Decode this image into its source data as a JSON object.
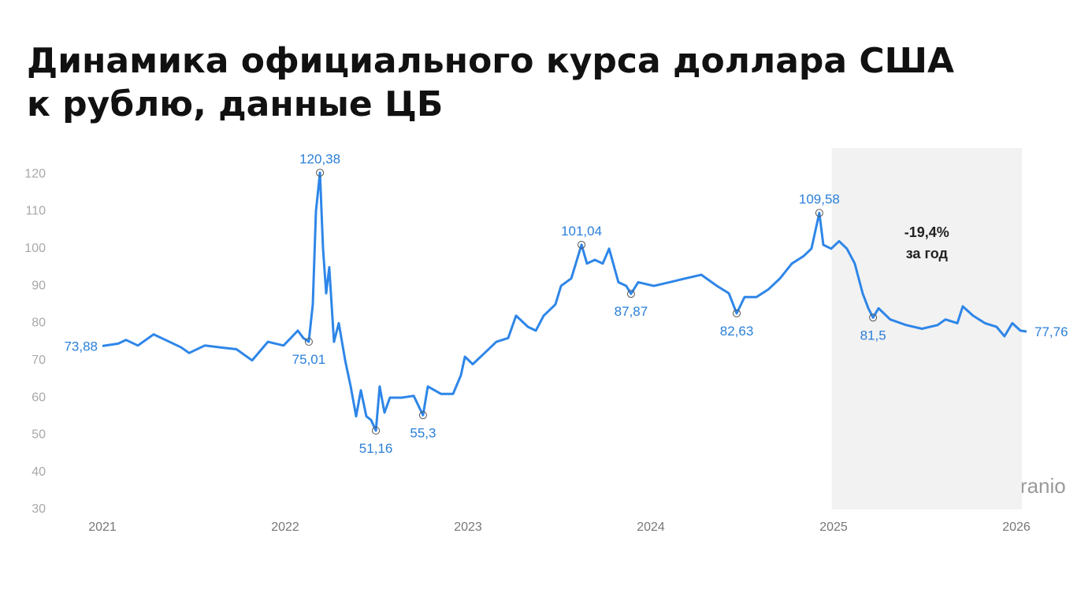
{
  "chart_data": {
    "type": "line",
    "title_lines": [
      "Динамика официального курса доллара США",
      "к рублю, данные ЦБ"
    ],
    "x": [
      2021.0,
      2021.086,
      2021.129,
      2021.194,
      2021.28,
      2021.345,
      2021.431,
      2021.474,
      2021.56,
      2021.647,
      2021.733,
      2021.819,
      2021.905,
      2021.991,
      2022.069,
      2022.099,
      2022.129,
      2022.151,
      2022.168,
      2022.19,
      2022.207,
      2022.224,
      2022.241,
      2022.267,
      2022.293,
      2022.328,
      2022.358,
      2022.388,
      2022.414,
      2022.444,
      2022.47,
      2022.496,
      2022.517,
      2022.543,
      2022.573,
      2022.638,
      2022.703,
      2022.754,
      2022.78,
      2022.853,
      2022.918,
      2022.961,
      2022.983,
      2023.026,
      2023.091,
      2023.155,
      2023.22,
      2023.263,
      2023.328,
      2023.371,
      2023.414,
      2023.478,
      2023.509,
      2023.565,
      2023.621,
      2023.651,
      2023.694,
      2023.737,
      2023.772,
      2023.823,
      2023.866,
      2023.892,
      2023.931,
      2024.017,
      2024.103,
      2024.19,
      2024.276,
      2024.362,
      2024.427,
      2024.47,
      2024.513,
      2024.578,
      2024.642,
      2024.707,
      2024.772,
      2024.836,
      2024.879,
      2024.922,
      2024.944,
      2024.987,
      2025.03,
      2025.073,
      2025.116,
      2025.159,
      2025.19,
      2025.216,
      2025.246,
      2025.31,
      2025.397,
      2025.483,
      2025.569,
      2025.612,
      2025.677,
      2025.707,
      2025.763,
      2025.828,
      2025.892,
      2025.935,
      2025.978,
      2026.022,
      2026.056
    ],
    "series": [
      {
        "color": "#2e86e8",
        "values": [
          73.88,
          74.5,
          75.5,
          74,
          77,
          75.5,
          73.5,
          72,
          74,
          73.5,
          73,
          70,
          75,
          74,
          78,
          76,
          75.01,
          85,
          110,
          120.38,
          100,
          88,
          95,
          75,
          80,
          70,
          63,
          55,
          62,
          55,
          54,
          51.16,
          63,
          56,
          60,
          60,
          60.5,
          55.3,
          63,
          61,
          61,
          66,
          71,
          69,
          72,
          75,
          76,
          82,
          79,
          78,
          82,
          85,
          90,
          92,
          101.04,
          96,
          97,
          96,
          100,
          91,
          90,
          87.87,
          91,
          90,
          91,
          92,
          93,
          90,
          88,
          82.63,
          87,
          87,
          89,
          92,
          96,
          98,
          100,
          109.58,
          101,
          100,
          102,
          100,
          96,
          88,
          84,
          81.5,
          84,
          81,
          79.5,
          78.5,
          79.5,
          81,
          80,
          84.5,
          82,
          80,
          79,
          76.5,
          80,
          78,
          77.76
        ],
        "value_labels": [
          "73,88",
          null,
          null,
          null,
          null,
          null,
          null,
          null,
          null,
          null,
          null,
          null,
          null,
          null,
          null,
          null,
          "75,01",
          null,
          null,
          "120,38",
          null,
          null,
          null,
          null,
          null,
          null,
          null,
          null,
          null,
          null,
          null,
          "51,16",
          null,
          null,
          null,
          null,
          null,
          "55,3",
          null,
          null,
          null,
          null,
          null,
          null,
          null,
          null,
          null,
          null,
          null,
          null,
          null,
          null,
          null,
          null,
          "101,04",
          null,
          null,
          null,
          null,
          null,
          null,
          "87,87",
          null,
          null,
          null,
          null,
          null,
          null,
          null,
          "82,63",
          null,
          null,
          null,
          null,
          null,
          null,
          null,
          "109,58",
          null,
          null,
          null,
          null,
          null,
          null,
          null,
          "81,5",
          null,
          null,
          null,
          null,
          null,
          null,
          null,
          null,
          null,
          null,
          null,
          null,
          null,
          null,
          "77,76"
        ]
      }
    ],
    "xlim": [
      2021,
      2026.1
    ],
    "xticks": [
      2021,
      2022,
      2023,
      2024,
      2025,
      2026
    ],
    "ylim": [
      30,
      127
    ],
    "yticks": [
      30,
      40,
      50,
      60,
      70,
      80,
      90,
      100,
      110,
      120
    ],
    "grid": false,
    "highlight_xlim": [
      2024.99,
      2026.03
    ],
    "highlight_color": "#f2f2f2",
    "annotation_lines": [
      "-19,4%",
      "за год"
    ],
    "watermark": "Tranio"
  }
}
